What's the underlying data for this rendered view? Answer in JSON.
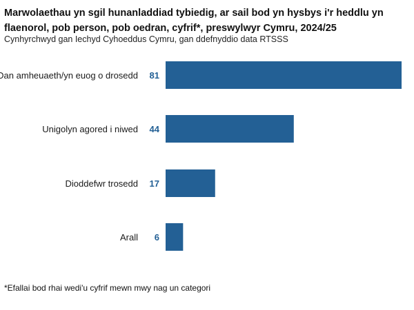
{
  "chart_data": {
    "type": "bar",
    "orientation": "horizontal",
    "title": "Marwolaethau yn sgil hunanladdiad tybiedig, ar sail bod yn hysbys i'r heddlu yn flaenorol, pob person, pob oedran, cyfrif*, preswylwyr Cymru, 2024/25",
    "subtitle": "Cynhyrchwyd gan Iechyd Cyhoeddus Cymru, gan ddefnyddio data RTSSS",
    "footnote": "*Efallai bod rhai wedi'u cyfrif mewn mwy nag un categori",
    "categories": [
      "Dan amheuaeth/yn euog o drosedd",
      "Unigolyn agored i niwed",
      "Dioddefwr trosedd",
      "Arall"
    ],
    "values": [
      81,
      44,
      17,
      6
    ],
    "xlim": [
      0,
      81
    ],
    "grid": false,
    "legend": "none",
    "colors": {
      "bar": "#236095",
      "value_label": "#236095"
    }
  }
}
